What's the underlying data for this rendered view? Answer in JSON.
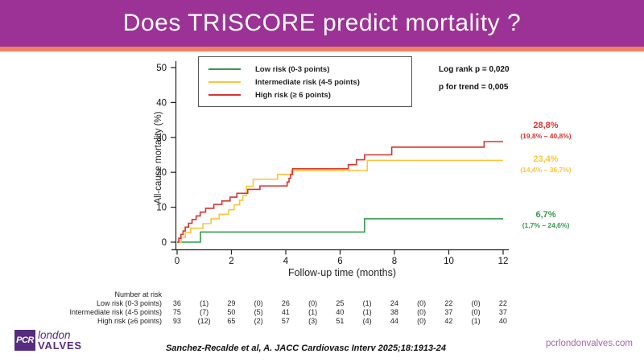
{
  "slide": {
    "title": "Does TRISCORE predict mortality ?",
    "citation": "Sanchez-Recalde et al, A. JACC Cardiovasc Interv 2025;18:1913-24",
    "website": "pcrlondonvalves.com",
    "logo": {
      "abbr": "PCR",
      "line1": "london",
      "line2": "VALVES"
    }
  },
  "stats": {
    "log_rank": "Log rank p = 0,020",
    "p_trend": "p for trend = 0,005"
  },
  "colors": {
    "header_purple": "#9c3295",
    "accent_orange": "#f08163",
    "logo_purple": "#552d80",
    "axis": "#222222"
  },
  "chart_data": {
    "type": "line",
    "subtype": "kaplan-meier-step",
    "xlabel": "Follow-up time (months)",
    "ylabel": "All-cause mortality (%)",
    "xlim": [
      0,
      12
    ],
    "ylim": [
      0,
      50
    ],
    "xticks": [
      0,
      2,
      4,
      6,
      8,
      10,
      12
    ],
    "yticks": [
      0,
      10,
      20,
      30,
      40,
      50
    ],
    "grid": false,
    "legend_position": "top-left-inside",
    "series": [
      {
        "name": "Low risk (0-3 points)",
        "color": "#349a4d",
        "end_label": "6,7%",
        "end_ci": "(1,7% – 24,6%)",
        "points": [
          [
            0,
            0
          ],
          [
            0.86,
            2.9
          ],
          [
            6.9,
            6.7
          ],
          [
            12,
            6.7
          ]
        ]
      },
      {
        "name": "Intermediate risk (4-5 points)",
        "color": "#fbc540",
        "end_label": "23,4%",
        "end_ci": "(14,4% – 36,7%)",
        "points": [
          [
            0,
            0
          ],
          [
            0.15,
            1.3
          ],
          [
            0.3,
            2.7
          ],
          [
            0.5,
            4.0
          ],
          [
            0.95,
            5.3
          ],
          [
            1.25,
            6.7
          ],
          [
            1.55,
            8.0
          ],
          [
            1.9,
            9.3
          ],
          [
            2.1,
            10.7
          ],
          [
            2.3,
            12.0
          ],
          [
            2.42,
            13.3
          ],
          [
            2.55,
            16.0
          ],
          [
            2.8,
            18.0
          ],
          [
            3.7,
            19.4
          ],
          [
            4.2,
            20.5
          ],
          [
            7.0,
            23.4
          ],
          [
            12,
            23.4
          ]
        ]
      },
      {
        "name": "High risk (≥ 6 points)",
        "color": "#d7342f",
        "end_label": "28,8%",
        "end_ci": "(19,8% – 40,8%)",
        "points": [
          [
            0,
            0
          ],
          [
            0.06,
            1.1
          ],
          [
            0.14,
            2.2
          ],
          [
            0.22,
            3.2
          ],
          [
            0.3,
            4.3
          ],
          [
            0.42,
            5.4
          ],
          [
            0.55,
            6.5
          ],
          [
            0.7,
            7.5
          ],
          [
            0.85,
            8.6
          ],
          [
            1.05,
            9.7
          ],
          [
            1.35,
            10.8
          ],
          [
            1.65,
            11.8
          ],
          [
            1.95,
            12.9
          ],
          [
            2.2,
            14.0
          ],
          [
            2.6,
            15.1
          ],
          [
            3.05,
            16.1
          ],
          [
            4.05,
            17.2
          ],
          [
            4.12,
            18.3
          ],
          [
            4.18,
            19.4
          ],
          [
            4.25,
            21.0
          ],
          [
            6.3,
            22.2
          ],
          [
            6.6,
            23.6
          ],
          [
            6.9,
            25.0
          ],
          [
            7.9,
            27.2
          ],
          [
            11.3,
            28.8
          ],
          [
            12,
            28.8
          ]
        ]
      }
    ]
  },
  "risk_table": {
    "header": "Number at risk",
    "rows": [
      {
        "label": "Low risk (0-3 points)",
        "values": [
          "36",
          "(1)",
          "29",
          "(0)",
          "26",
          "(0)",
          "25",
          "(1)",
          "24",
          "(0)",
          "22",
          "(0)",
          "22"
        ]
      },
      {
        "label": "Intermediate risk (4-5 points)",
        "values": [
          "75",
          "(7)",
          "50",
          "(5)",
          "41",
          "(1)",
          "40",
          "(1)",
          "38",
          "(0)",
          "37",
          "(0)",
          "37"
        ]
      },
      {
        "label": "High risk (≥6 points)",
        "values": [
          "93",
          "(12)",
          "65",
          "(2)",
          "57",
          "(3)",
          "51",
          "(4)",
          "44",
          "(0)",
          "42",
          "(1)",
          "40"
        ]
      }
    ]
  }
}
